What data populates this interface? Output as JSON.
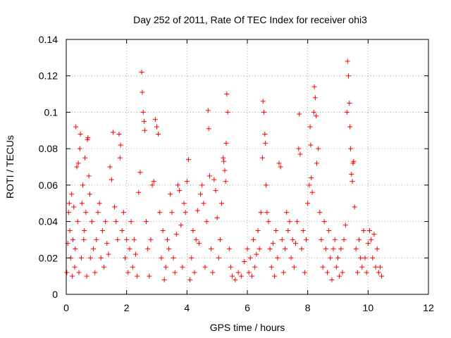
{
  "chart_data": {
    "type": "scatter",
    "title": "Day 252 of 2011, Rate Of TEC Index for receiver ohi3",
    "xlabel": "GPS time / hours",
    "ylabel": "ROTI / TECUs",
    "xlim": [
      0,
      12
    ],
    "ylim": [
      0,
      0.14
    ],
    "x_ticks": [
      0,
      2,
      4,
      6,
      8,
      10,
      12
    ],
    "y_ticks": [
      0,
      0.02,
      0.04,
      0.06,
      0.08,
      0.1,
      0.12,
      0.14
    ],
    "x_tick_labels": [
      "0",
      "2",
      "4",
      "6",
      "8",
      "10",
      "12"
    ],
    "y_tick_labels": [
      "0",
      "0.02",
      "0.04",
      "0.06",
      "0.08",
      "0.1",
      "0.12",
      "0.14"
    ],
    "grid": true,
    "marker": "+",
    "color": "#ff0000",
    "series": [
      {
        "values": [
          [
            0.02,
            0.012
          ],
          [
            0.05,
            0.028
          ],
          [
            0.08,
            0.045
          ],
          [
            0.1,
            0.05
          ],
          [
            0.12,
            0.035
          ],
          [
            0.15,
            0.02
          ],
          [
            0.18,
            0.055
          ],
          [
            0.2,
            0.01
          ],
          [
            0.22,
            0.03
          ],
          [
            0.25,
            0.048
          ],
          [
            0.28,
            0.015
          ],
          [
            0.3,
            0.025
          ],
          [
            0.32,
            0.092
          ],
          [
            0.35,
            0.07
          ],
          [
            0.38,
            0.04
          ],
          [
            0.4,
            0.072
          ],
          [
            0.42,
            0.012
          ],
          [
            0.45,
            0.08
          ],
          [
            0.47,
            0.088
          ],
          [
            0.5,
            0.02
          ],
          [
            0.52,
            0.05
          ],
          [
            0.55,
            0.06
          ],
          [
            0.58,
            0.03
          ],
          [
            0.6,
            0.035
          ],
          [
            0.62,
            0.075
          ],
          [
            0.65,
            0.045
          ],
          [
            0.68,
            0.01
          ],
          [
            0.7,
            0.085
          ],
          [
            0.72,
            0.086
          ],
          [
            0.75,
            0.065
          ],
          [
            0.78,
            0.055
          ],
          [
            0.8,
            0.02
          ],
          [
            0.85,
            0.04
          ],
          [
            0.9,
            0.025
          ],
          [
            0.95,
            0.012
          ],
          [
            1.0,
            0.03
          ],
          [
            1.05,
            0.045
          ],
          [
            1.1,
            0.05
          ],
          [
            1.15,
            0.02
          ],
          [
            1.2,
            0.035
          ],
          [
            1.25,
            0.015
          ],
          [
            1.3,
            0.04
          ],
          [
            1.35,
            0.028
          ],
          [
            1.4,
            0.022
          ],
          [
            1.45,
            0.07
          ],
          [
            1.5,
            0.063
          ],
          [
            1.55,
            0.089
          ],
          [
            1.6,
            0.048
          ],
          [
            1.65,
            0.04
          ],
          [
            1.7,
            0.03
          ],
          [
            1.75,
            0.088
          ],
          [
            1.78,
            0.075
          ],
          [
            1.8,
            0.082
          ],
          [
            1.85,
            0.035
          ],
          [
            1.9,
            0.045
          ],
          [
            1.95,
            0.02
          ],
          [
            2.0,
            0.03
          ],
          [
            2.05,
            0.012
          ],
          [
            2.1,
            0.025
          ],
          [
            2.15,
            0.04
          ],
          [
            2.2,
            0.015
          ],
          [
            2.25,
            0.03
          ],
          [
            2.3,
            0.022
          ],
          [
            2.35,
            0.01
          ],
          [
            2.4,
            0.056
          ],
          [
            2.45,
            0.067
          ],
          [
            2.5,
            0.122
          ],
          [
            2.52,
            0.111
          ],
          [
            2.55,
            0.1
          ],
          [
            2.58,
            0.095
          ],
          [
            2.6,
            0.09
          ],
          [
            2.65,
            0.04
          ],
          [
            2.7,
            0.025
          ],
          [
            2.75,
            0.01
          ],
          [
            2.8,
            0.03
          ],
          [
            2.85,
            0.06
          ],
          [
            2.9,
            0.062
          ],
          [
            2.95,
            0.096
          ],
          [
            3.0,
            0.092
          ],
          [
            3.05,
            0.088
          ],
          [
            3.1,
            0.045
          ],
          [
            3.15,
            0.02
          ],
          [
            3.2,
            0.035
          ],
          [
            3.25,
            0.008
          ],
          [
            3.3,
            0.015
          ],
          [
            3.35,
            0.03
          ],
          [
            3.4,
            0.025
          ],
          [
            3.45,
            0.055
          ],
          [
            3.5,
            0.045
          ],
          [
            3.55,
            0.02
          ],
          [
            3.6,
            0.012
          ],
          [
            3.65,
            0.033
          ],
          [
            3.7,
            0.06
          ],
          [
            3.75,
            0.057
          ],
          [
            3.8,
            0.038
          ],
          [
            3.85,
            0.015
          ],
          [
            3.9,
            0.05
          ],
          [
            3.95,
            0.045
          ],
          [
            4.0,
            0.062
          ],
          [
            4.05,
            0.074
          ],
          [
            4.1,
            0.008
          ],
          [
            4.15,
            0.02
          ],
          [
            4.2,
            0.035
          ],
          [
            4.25,
            0.012
          ],
          [
            4.3,
            0.03
          ],
          [
            4.35,
            0.046
          ],
          [
            4.4,
            0.028
          ],
          [
            4.45,
            0.055
          ],
          [
            4.5,
            0.06
          ],
          [
            4.55,
            0.05
          ],
          [
            4.6,
            0.015
          ],
          [
            4.65,
            0.04
          ],
          [
            4.7,
            0.101
          ],
          [
            4.72,
            0.091
          ],
          [
            4.75,
            0.065
          ],
          [
            4.8,
            0.025
          ],
          [
            4.85,
            0.012
          ],
          [
            4.9,
            0.063
          ],
          [
            4.95,
            0.057
          ],
          [
            5.0,
            0.042
          ],
          [
            5.05,
            0.02
          ],
          [
            5.1,
            0.03
          ],
          [
            5.15,
            0.05
          ],
          [
            5.2,
            0.075
          ],
          [
            5.22,
            0.073
          ],
          [
            5.25,
            0.068
          ],
          [
            5.28,
            0.062
          ],
          [
            5.3,
            0.083
          ],
          [
            5.32,
            0.11
          ],
          [
            5.35,
            0.1
          ],
          [
            5.4,
            0.025
          ],
          [
            5.45,
            0.015
          ],
          [
            5.5,
            0.01
          ],
          [
            5.6,
            0.008
          ],
          [
            5.7,
            0.012
          ],
          [
            5.8,
            0.01
          ],
          [
            5.9,
            0.018
          ],
          [
            6.0,
            0.025
          ],
          [
            6.05,
            0.012
          ],
          [
            6.1,
            0.02
          ],
          [
            6.15,
            0.01
          ],
          [
            6.2,
            0.03
          ],
          [
            6.25,
            0.015
          ],
          [
            6.3,
            0.022
          ],
          [
            6.35,
            0.035
          ],
          [
            6.4,
            0.025
          ],
          [
            6.45,
            0.045
          ],
          [
            6.5,
            0.075
          ],
          [
            6.52,
            0.106
          ],
          [
            6.55,
            0.1
          ],
          [
            6.58,
            0.088
          ],
          [
            6.6,
            0.083
          ],
          [
            6.62,
            0.06
          ],
          [
            6.65,
            0.045
          ],
          [
            6.7,
            0.04
          ],
          [
            6.75,
            0.025
          ],
          [
            6.8,
            0.015
          ],
          [
            6.85,
            0.028
          ],
          [
            6.9,
            0.01
          ],
          [
            6.95,
            0.035
          ],
          [
            7.0,
            0.02
          ],
          [
            7.05,
            0.072
          ],
          [
            7.1,
            0.07
          ],
          [
            7.15,
            0.03
          ],
          [
            7.2,
            0.012
          ],
          [
            7.25,
            0.025
          ],
          [
            7.3,
            0.045
          ],
          [
            7.35,
            0.035
          ],
          [
            7.4,
            0.04
          ],
          [
            7.45,
            0.02
          ],
          [
            7.5,
            0.03
          ],
          [
            7.55,
            0.015
          ],
          [
            7.6,
            0.028
          ],
          [
            7.65,
            0.04
          ],
          [
            7.7,
            0.08
          ],
          [
            7.72,
            0.099
          ],
          [
            7.75,
            0.077
          ],
          [
            7.8,
            0.025
          ],
          [
            7.85,
            0.035
          ],
          [
            7.9,
            0.012
          ],
          [
            7.95,
            0.03
          ],
          [
            8.0,
            0.05
          ],
          [
            8.05,
            0.06
          ],
          [
            8.08,
            0.092
          ],
          [
            8.1,
            0.082
          ],
          [
            8.12,
            0.064
          ],
          [
            8.15,
            0.056
          ],
          [
            8.2,
            0.1
          ],
          [
            8.22,
            0.114
          ],
          [
            8.25,
            0.108
          ],
          [
            8.28,
            0.098
          ],
          [
            8.3,
            0.072
          ],
          [
            8.35,
            0.08
          ],
          [
            8.4,
            0.045
          ],
          [
            8.45,
            0.03
          ],
          [
            8.5,
            0.015
          ],
          [
            8.55,
            0.04
          ],
          [
            8.6,
            0.025
          ],
          [
            8.65,
            0.012
          ],
          [
            8.7,
            0.035
          ],
          [
            8.75,
            0.02
          ],
          [
            8.8,
            0.008
          ],
          [
            8.85,
            0.025
          ],
          [
            8.9,
            0.03
          ],
          [
            8.95,
            0.015
          ],
          [
            9.0,
            0.02
          ],
          [
            9.05,
            0.01
          ],
          [
            9.1,
            0.025
          ],
          [
            9.15,
            0.012
          ],
          [
            9.2,
            0.03
          ],
          [
            9.25,
            0.038
          ],
          [
            9.3,
            0.1
          ],
          [
            9.32,
            0.128
          ],
          [
            9.35,
            0.12
          ],
          [
            9.38,
            0.105
          ],
          [
            9.4,
            0.092
          ],
          [
            9.42,
            0.08
          ],
          [
            9.45,
            0.066
          ],
          [
            9.48,
            0.062
          ],
          [
            9.5,
            0.072
          ],
          [
            9.52,
            0.073
          ],
          [
            9.55,
            0.048
          ],
          [
            9.6,
            0.025
          ],
          [
            9.65,
            0.012
          ],
          [
            9.7,
            0.03
          ],
          [
            9.75,
            0.02
          ],
          [
            9.8,
            0.015
          ],
          [
            9.85,
            0.035
          ],
          [
            9.9,
            0.02
          ],
          [
            9.95,
            0.012
          ],
          [
            10.0,
            0.028
          ],
          [
            10.05,
            0.035
          ],
          [
            10.1,
            0.03
          ],
          [
            10.15,
            0.02
          ],
          [
            10.2,
            0.033
          ],
          [
            10.25,
            0.015
          ],
          [
            10.3,
            0.025
          ],
          [
            10.35,
            0.012
          ],
          [
            10.4,
            0.015
          ],
          [
            10.45,
            0.01
          ]
        ]
      }
    ]
  }
}
